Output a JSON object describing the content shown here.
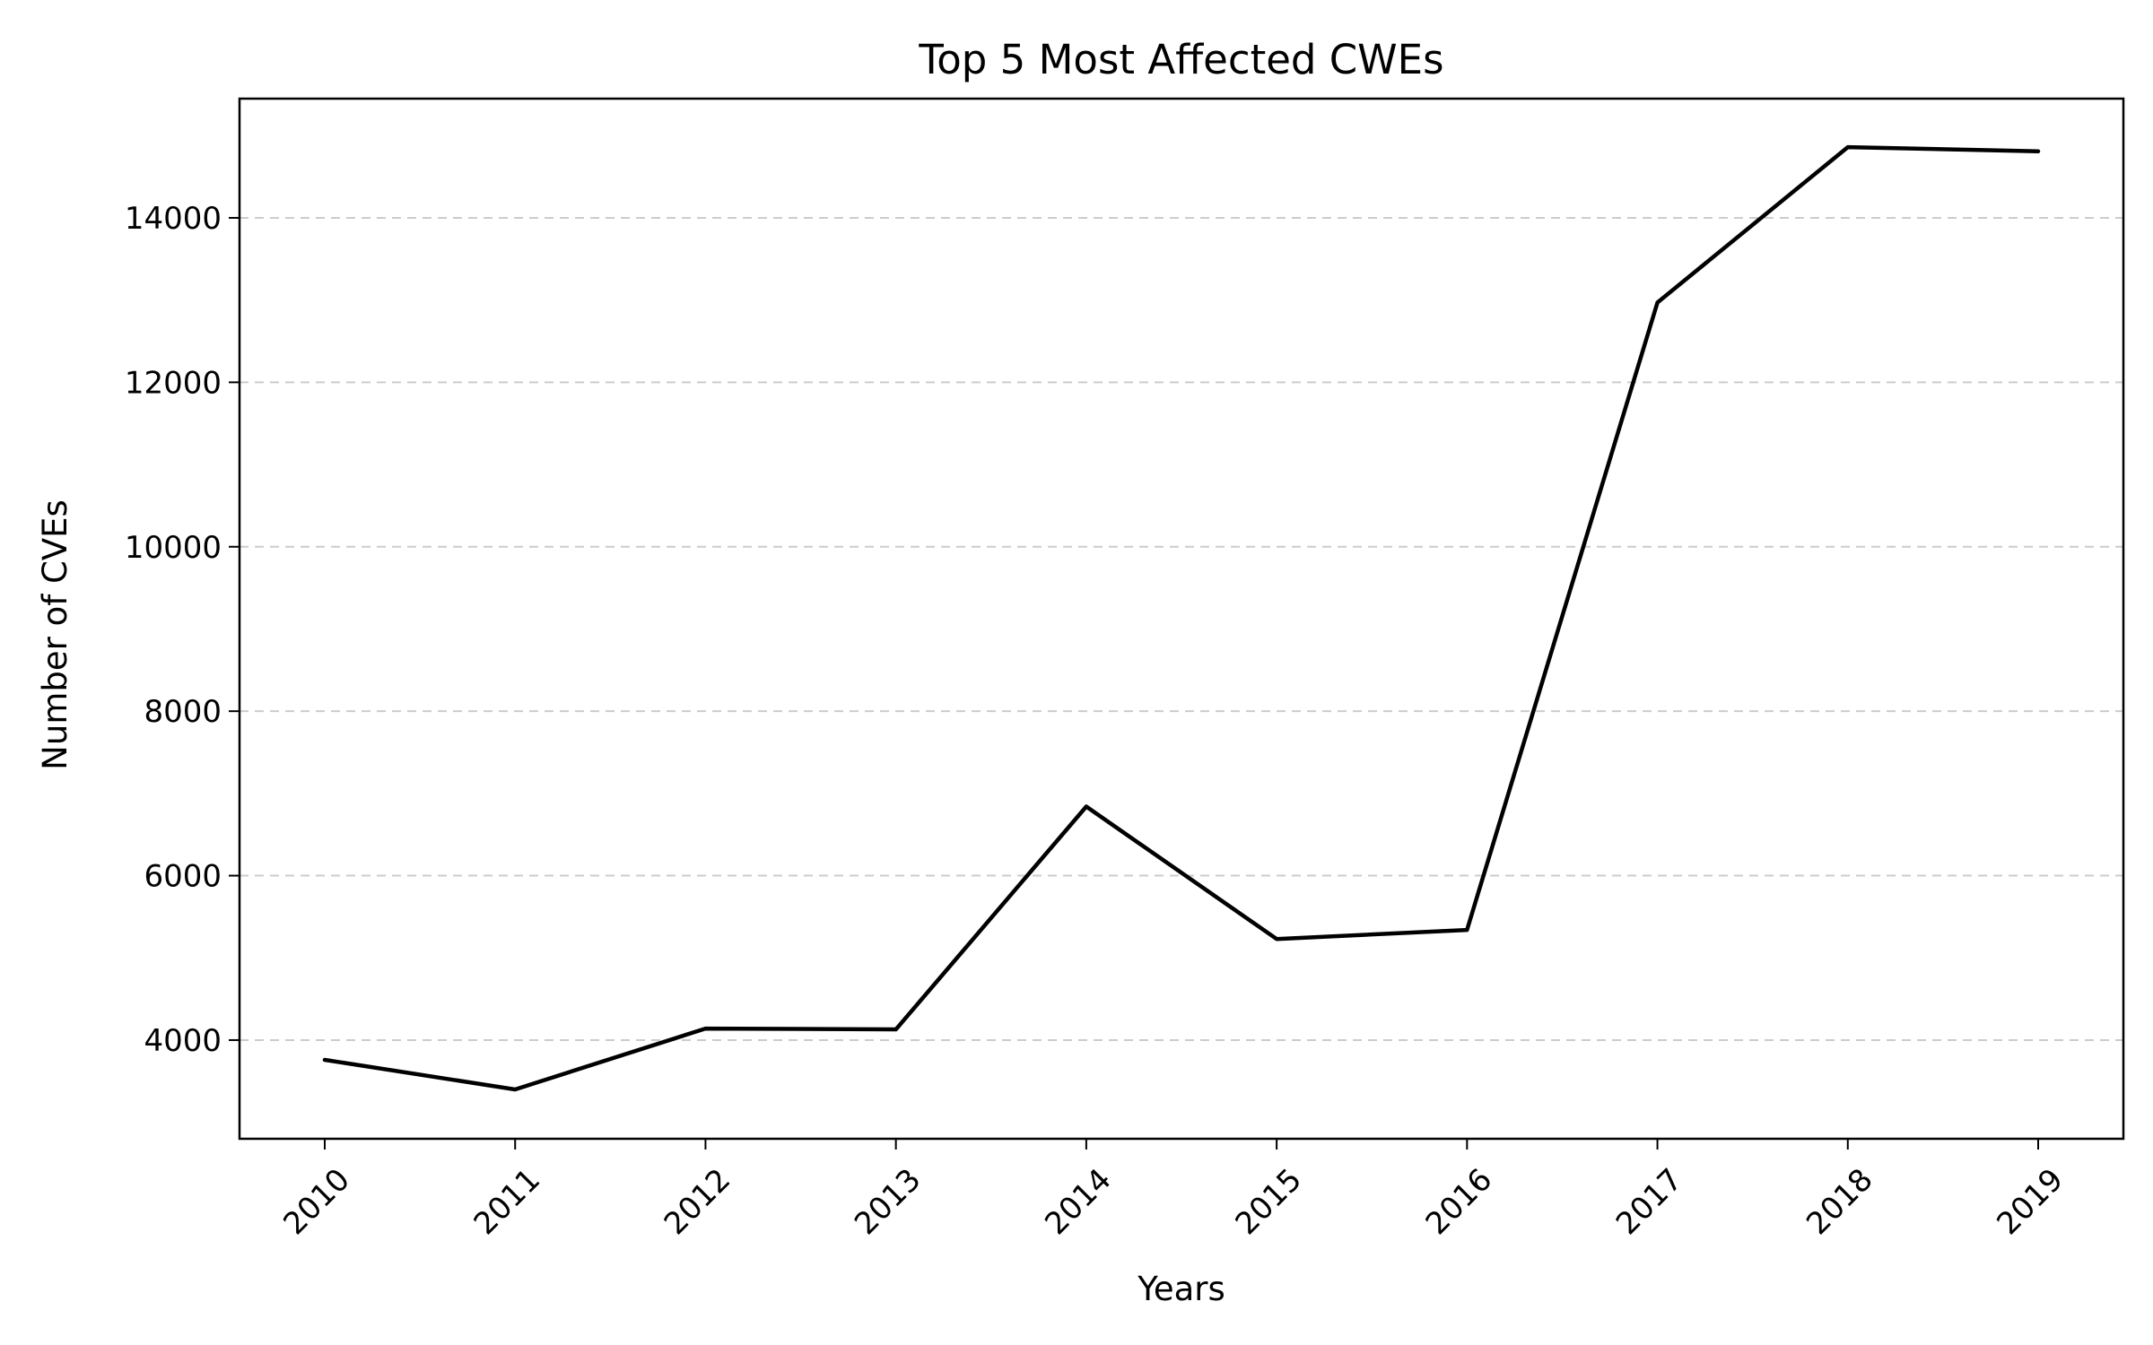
{
  "chart_data": {
    "type": "line",
    "title": "Top 5 Most Affected CWEs",
    "xlabel": "Years",
    "ylabel": "Number of CVEs",
    "categories": [
      "2010",
      "2011",
      "2012",
      "2013",
      "2014",
      "2015",
      "2016",
      "2017",
      "2018",
      "2019"
    ],
    "series": [
      {
        "values": [
          3760,
          3400,
          4140,
          4130,
          6840,
          5230,
          5340,
          12970,
          14860,
          14810
        ],
        "color": "#000000"
      }
    ],
    "ylim": [
      2800,
      15450
    ],
    "yticks": [
      4000,
      6000,
      8000,
      10000,
      12000,
      14000
    ],
    "ytick_labels": [
      "4000",
      "6000",
      "8000",
      "10000",
      "12000",
      "14000"
    ],
    "grid": "y-dashed",
    "legend": "none"
  }
}
